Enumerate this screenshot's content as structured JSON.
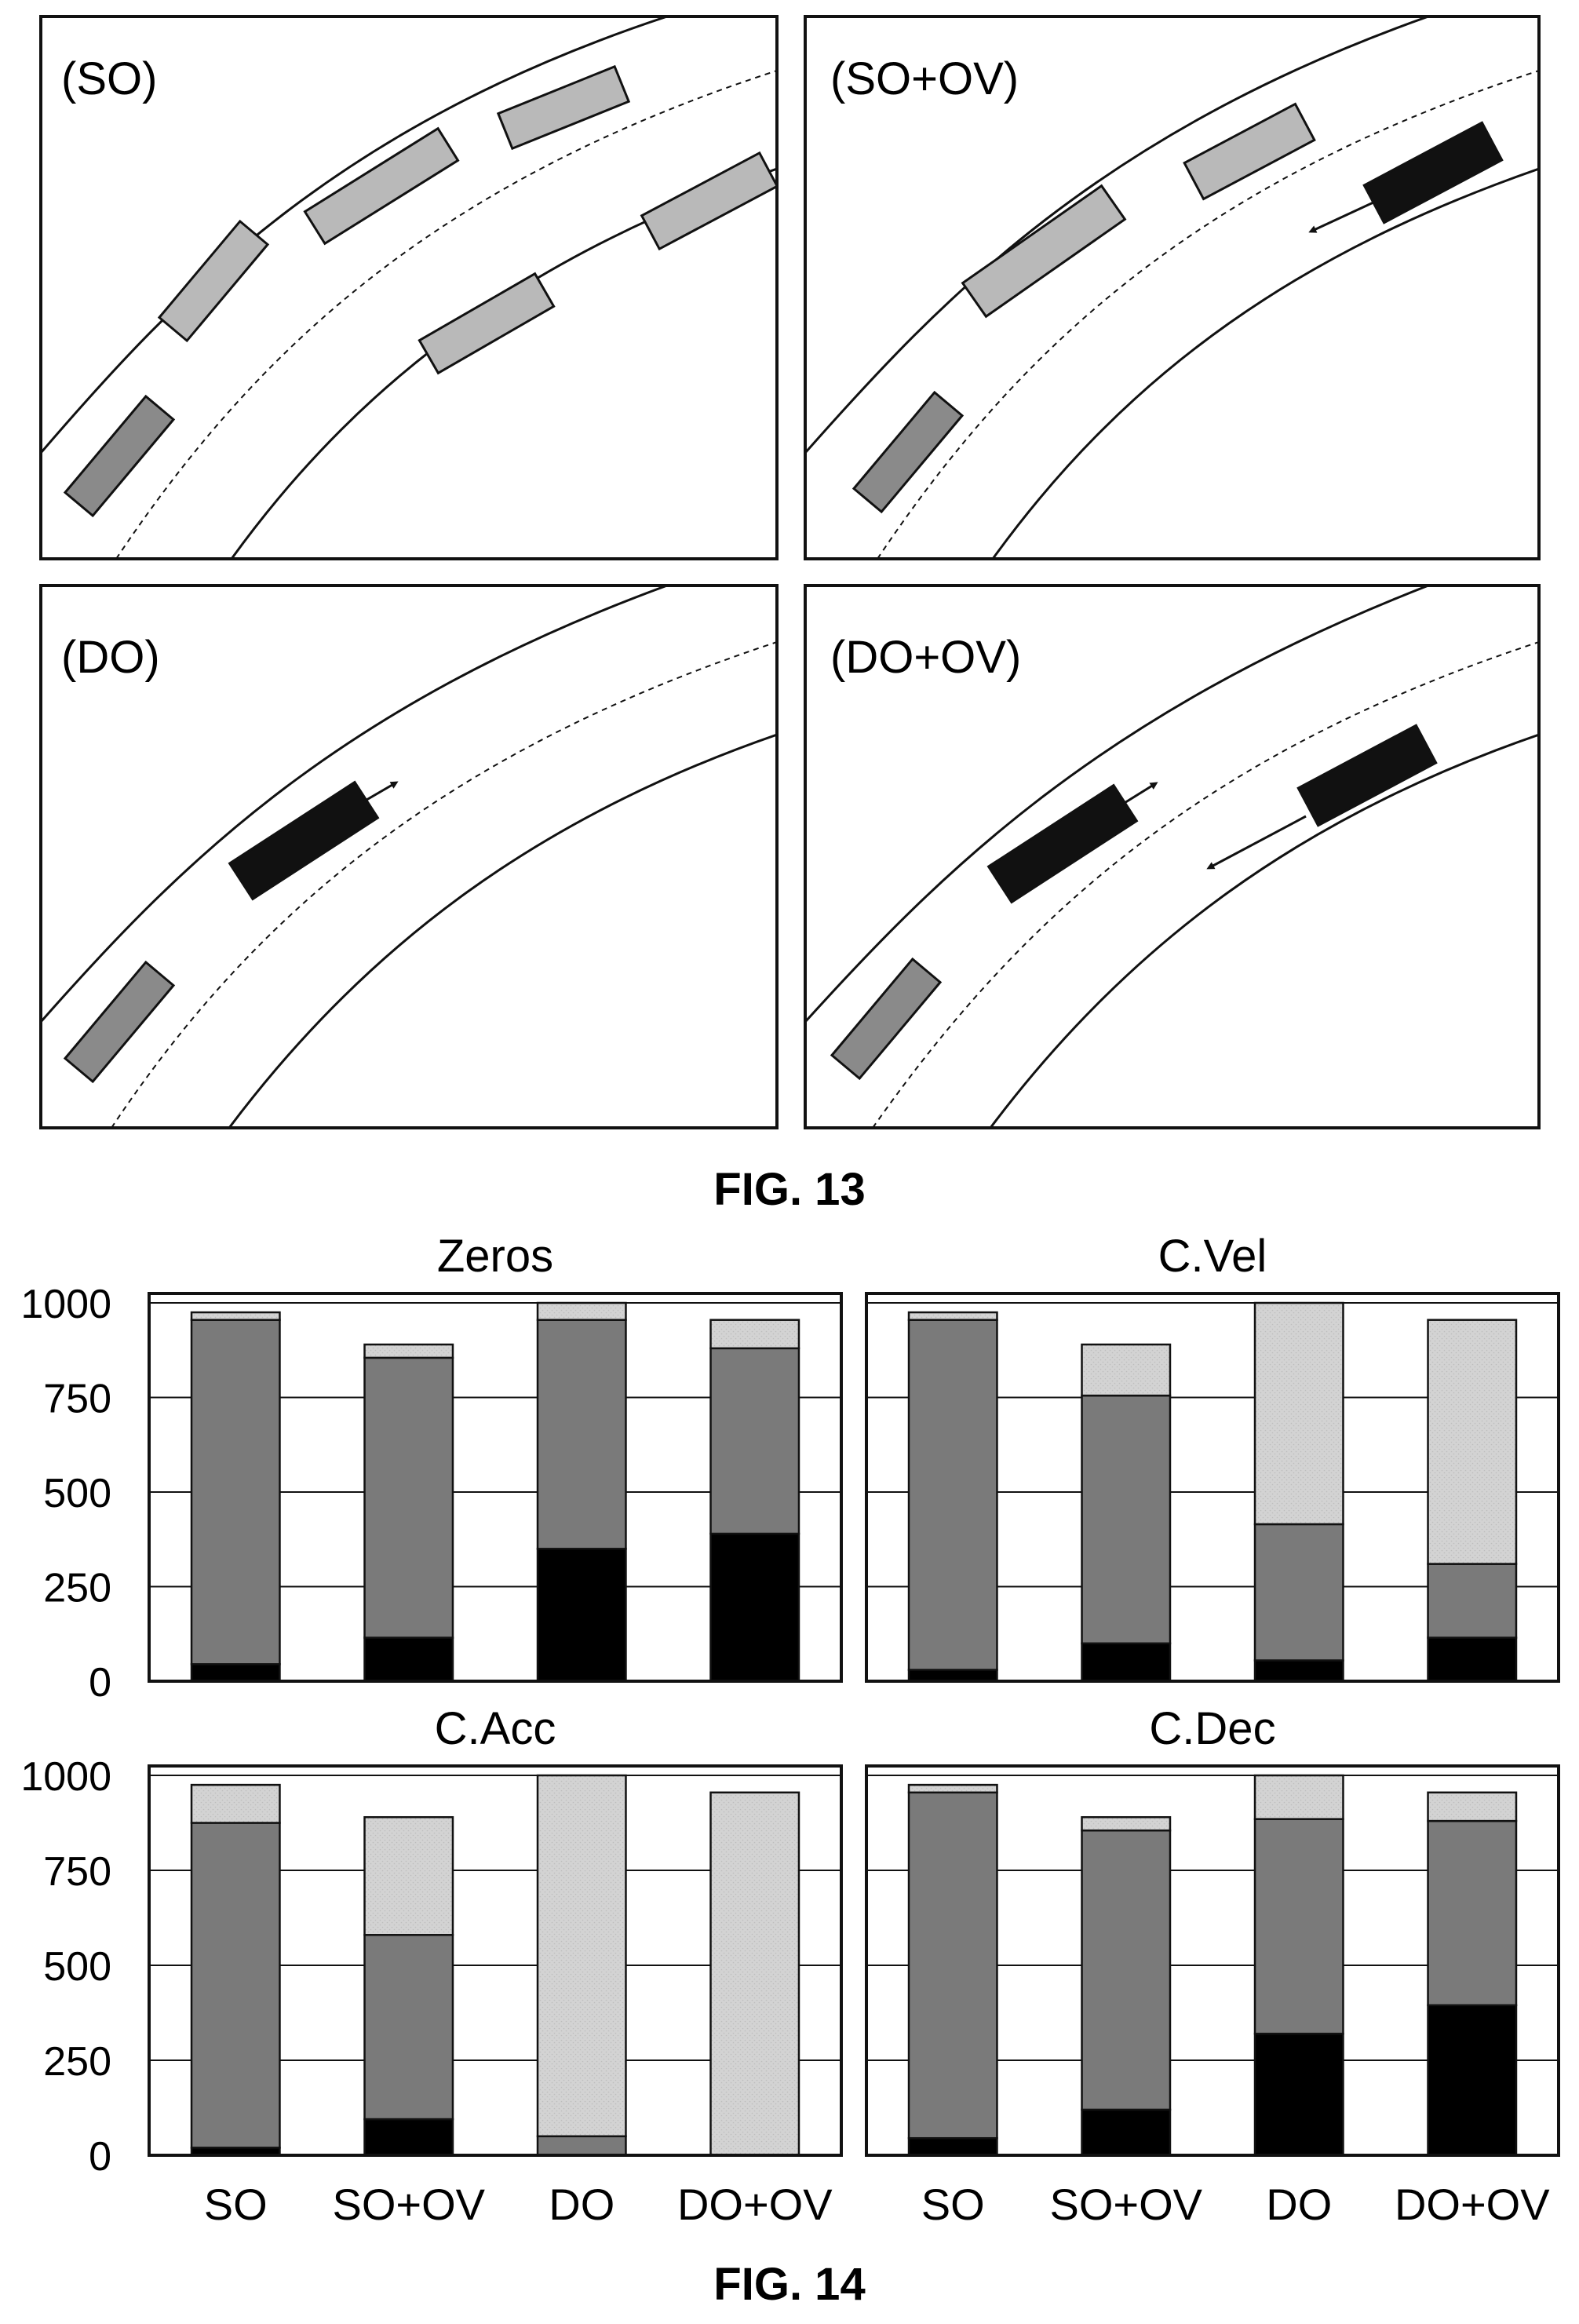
{
  "fig13": {
    "caption": "FIG. 13",
    "panels": [
      {
        "label": "(SO)"
      },
      {
        "label": "(SO+OV)"
      },
      {
        "label": "(DO)"
      },
      {
        "label": "(DO+OV)"
      }
    ]
  },
  "fig14": {
    "caption": "FIG. 14"
  },
  "colors": {
    "black": "#000000",
    "dark_gray": "#7a7a7a",
    "light_gray": "#d3d3d3",
    "ego_vehicle": "#8a8a8a",
    "static_vehicle": "#b9b9b9",
    "dynamic_vehicle": "#111111"
  },
  "chart_data": [
    {
      "type": "bar",
      "stacked": true,
      "title": "Zeros",
      "categories": [
        "SO",
        "SO+OV",
        "DO",
        "DO+OV"
      ],
      "ylim": [
        0,
        1000
      ],
      "yticks": [
        0,
        250,
        500,
        750,
        1000
      ],
      "grid": true,
      "series": [
        {
          "color": "black",
          "values": [
            45,
            115,
            350,
            390
          ]
        },
        {
          "color": "dark_gray",
          "values": [
            910,
            740,
            605,
            490
          ]
        },
        {
          "color": "light_gray",
          "values": [
            20,
            35,
            45,
            75
          ]
        }
      ]
    },
    {
      "type": "bar",
      "stacked": true,
      "title": "C.Vel",
      "categories": [
        "SO",
        "SO+OV",
        "DO",
        "DO+OV"
      ],
      "ylim": [
        0,
        1000
      ],
      "yticks": [
        0,
        250,
        500,
        750,
        1000
      ],
      "grid": true,
      "series": [
        {
          "color": "black",
          "values": [
            30,
            100,
            55,
            115
          ]
        },
        {
          "color": "dark_gray",
          "values": [
            925,
            655,
            360,
            195
          ]
        },
        {
          "color": "light_gray",
          "values": [
            20,
            135,
            585,
            645
          ]
        }
      ]
    },
    {
      "type": "bar",
      "stacked": true,
      "title": "C.Acc",
      "categories": [
        "SO",
        "SO+OV",
        "DO",
        "DO+OV"
      ],
      "ylim": [
        0,
        1000
      ],
      "yticks": [
        0,
        250,
        500,
        750,
        1000
      ],
      "grid": true,
      "series": [
        {
          "color": "black",
          "values": [
            20,
            95,
            0,
            0
          ]
        },
        {
          "color": "dark_gray",
          "values": [
            855,
            485,
            50,
            0
          ]
        },
        {
          "color": "light_gray",
          "values": [
            100,
            310,
            950,
            955
          ]
        }
      ]
    },
    {
      "type": "bar",
      "stacked": true,
      "title": "C.Dec",
      "categories": [
        "SO",
        "SO+OV",
        "DO",
        "DO+OV"
      ],
      "ylim": [
        0,
        1000
      ],
      "yticks": [
        0,
        250,
        500,
        750,
        1000
      ],
      "grid": true,
      "series": [
        {
          "color": "black",
          "values": [
            45,
            120,
            320,
            395
          ]
        },
        {
          "color": "dark_gray",
          "values": [
            910,
            735,
            565,
            485
          ]
        },
        {
          "color": "light_gray",
          "values": [
            20,
            35,
            115,
            75
          ]
        }
      ]
    }
  ]
}
